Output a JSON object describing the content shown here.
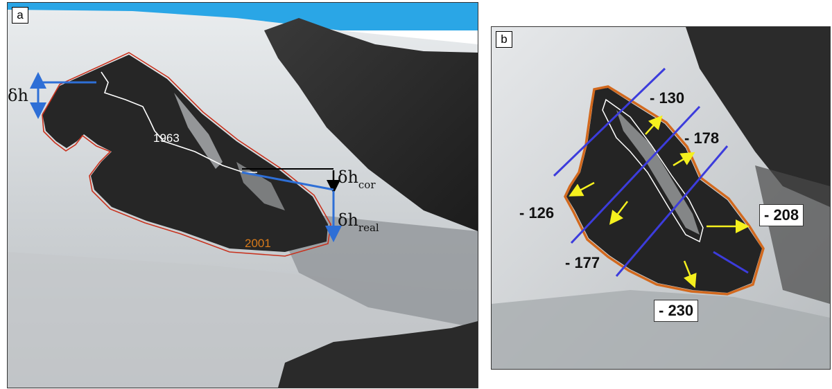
{
  "panels": {
    "a": {
      "label": "a",
      "annotations": {
        "dh": "δh",
        "dh_cor_main": "δh",
        "dh_cor_sub": "cor",
        "dh_real_main": "δh",
        "dh_real_sub": "real",
        "year_1963": "1963",
        "year_2001": "2001"
      }
    },
    "b": {
      "label": "b",
      "values": {
        "v130": "- 130",
        "v178": "- 178",
        "v126": "- 126",
        "v177": "- 177",
        "v208": "- 208",
        "v230": "- 230"
      }
    }
  },
  "colors": {
    "outline_2001": "#c8321e",
    "outline_1963": "#ffffff",
    "outline_b": "#d2691e",
    "profile_lines": "#3c3cdc",
    "arrows_b": "#f5f01e",
    "arrows_a": "#2e6fd6",
    "sky": "#2aa6e6",
    "year_2001_text": "#d87a1a"
  }
}
